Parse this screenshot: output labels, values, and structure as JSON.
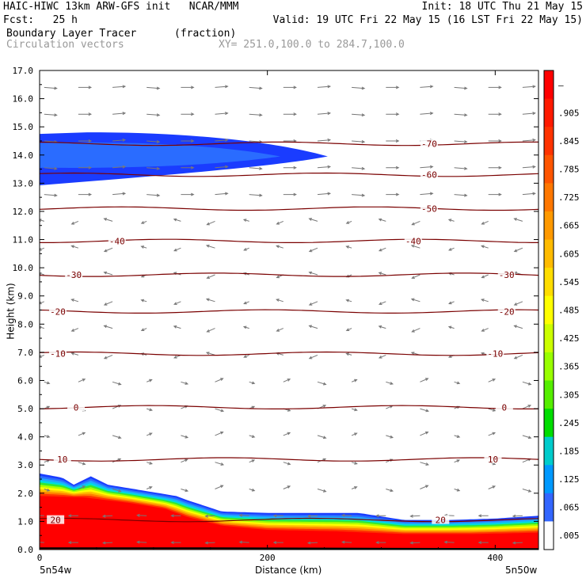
{
  "header": {
    "line1_left": "HAIC-HIWC 13km ARW-GFS init   NCAR/MMM",
    "line1_right": "Init: 18 UTC Thu 21 May 15",
    "line2_left": "Fcst:   25 h",
    "line2_right": "Valid: 19 UTC Fri 22 May 15 (16 LST Fri 22 May 15)",
    "line3_field": "Boundary Layer Tracer",
    "line3_units": "(fraction)",
    "line4_vectors": "Circulation vectors",
    "line4_xy": "XY= 251.0,100.0 to 284.7,100.0"
  },
  "chart_data": {
    "type": "heatmap",
    "title": "Boundary Layer Tracer (fraction)",
    "xlabel": "Distance (km)",
    "ylabel": "Height (km)",
    "xlim": [
      0,
      438
    ],
    "ylim": [
      0,
      17
    ],
    "x_ticks": [
      0,
      200,
      400
    ],
    "y_ticks": [
      "0.0",
      "1.0",
      "2.0",
      "3.0",
      "4.0",
      "5.0",
      "6.0",
      "7.0",
      "8.0",
      "9.0",
      "10.0",
      "11.0",
      "12.0",
      "13.0",
      "14.0",
      "15.0",
      "16.0",
      "17.0"
    ],
    "x_end_labels": {
      "left": "5n54w",
      "right": "5n50w"
    },
    "colorbar": {
      "labels": [
        "—",
        ".905",
        ".845",
        ".785",
        ".725",
        ".665",
        ".605",
        ".545",
        ".485",
        ".425",
        ".365",
        ".305",
        ".245",
        ".185",
        ".125",
        ".065",
        ".005"
      ],
      "colors": [
        "#ff0000",
        "#ff1a00",
        "#ff3300",
        "#ff5500",
        "#ff7700",
        "#ff9900",
        "#ffbb00",
        "#ffdd00",
        "#ffff00",
        "#ccff00",
        "#99ff00",
        "#55ee00",
        "#00dd00",
        "#00cccc",
        "#0099ff",
        "#3366ff",
        "#ffffff"
      ]
    },
    "tracer_surface_layer": {
      "top_height_km": [
        [
          0,
          2.7
        ],
        [
          20,
          2.55
        ],
        [
          30,
          2.3
        ],
        [
          45,
          2.6
        ],
        [
          60,
          2.3
        ],
        [
          90,
          2.1
        ],
        [
          120,
          1.9
        ],
        [
          130,
          1.75
        ],
        [
          160,
          1.35
        ],
        [
          200,
          1.3
        ],
        [
          280,
          1.3
        ],
        [
          320,
          1.05
        ],
        [
          360,
          1.05
        ],
        [
          400,
          1.1
        ],
        [
          438,
          1.2
        ]
      ],
      "core_top_height_km": [
        [
          0,
          1.9
        ],
        [
          40,
          1.85
        ],
        [
          80,
          1.65
        ],
        [
          110,
          1.45
        ],
        [
          130,
          1.15
        ],
        [
          160,
          0.85
        ],
        [
          200,
          0.7
        ],
        [
          260,
          0.65
        ],
        [
          320,
          0.55
        ],
        [
          380,
          0.55
        ],
        [
          438,
          0.6
        ]
      ]
    },
    "tracer_upper_plume": {
      "x_km": [
        0,
        253
      ],
      "center_km": 13.95,
      "thickness_km": 1.6,
      "value_level": ".005-.125"
    },
    "temperature_contours": [
      {
        "label": "-70",
        "height_km": 14.4,
        "label_x_km": 342
      },
      {
        "label": "-60",
        "height_km": 13.3,
        "label_x_km": 342
      },
      {
        "label": "-50",
        "height_km": 12.1,
        "label_x_km": 342
      },
      {
        "label": "-40",
        "height_km": 10.95,
        "label_x_km": 68
      },
      {
        "label": "-40",
        "height_km": 10.95,
        "label_x_km": 328
      },
      {
        "label": "-30",
        "height_km": 9.75,
        "label_x_km": 30
      },
      {
        "label": "-30",
        "height_km": 9.75,
        "label_x_km": 410
      },
      {
        "label": "-20",
        "height_km": 8.45,
        "label_x_km": 16
      },
      {
        "label": "-20",
        "height_km": 8.45,
        "label_x_km": 410
      },
      {
        "label": "-10",
        "height_km": 6.95,
        "label_x_km": 16
      },
      {
        "label": "-10",
        "height_km": 6.95,
        "label_x_km": 400
      },
      {
        "label": "0",
        "height_km": 5.05,
        "label_x_km": 32
      },
      {
        "label": "0",
        "height_km": 5.05,
        "label_x_km": 408
      },
      {
        "label": "10",
        "height_km": 3.2,
        "label_x_km": 20
      },
      {
        "label": "10",
        "height_km": 3.2,
        "label_x_km": 398
      },
      {
        "label": "20",
        "height_km": 1.05,
        "label_x_km": 14
      },
      {
        "label": "20",
        "height_km": 1.05,
        "label_x_km": 352
      }
    ]
  }
}
